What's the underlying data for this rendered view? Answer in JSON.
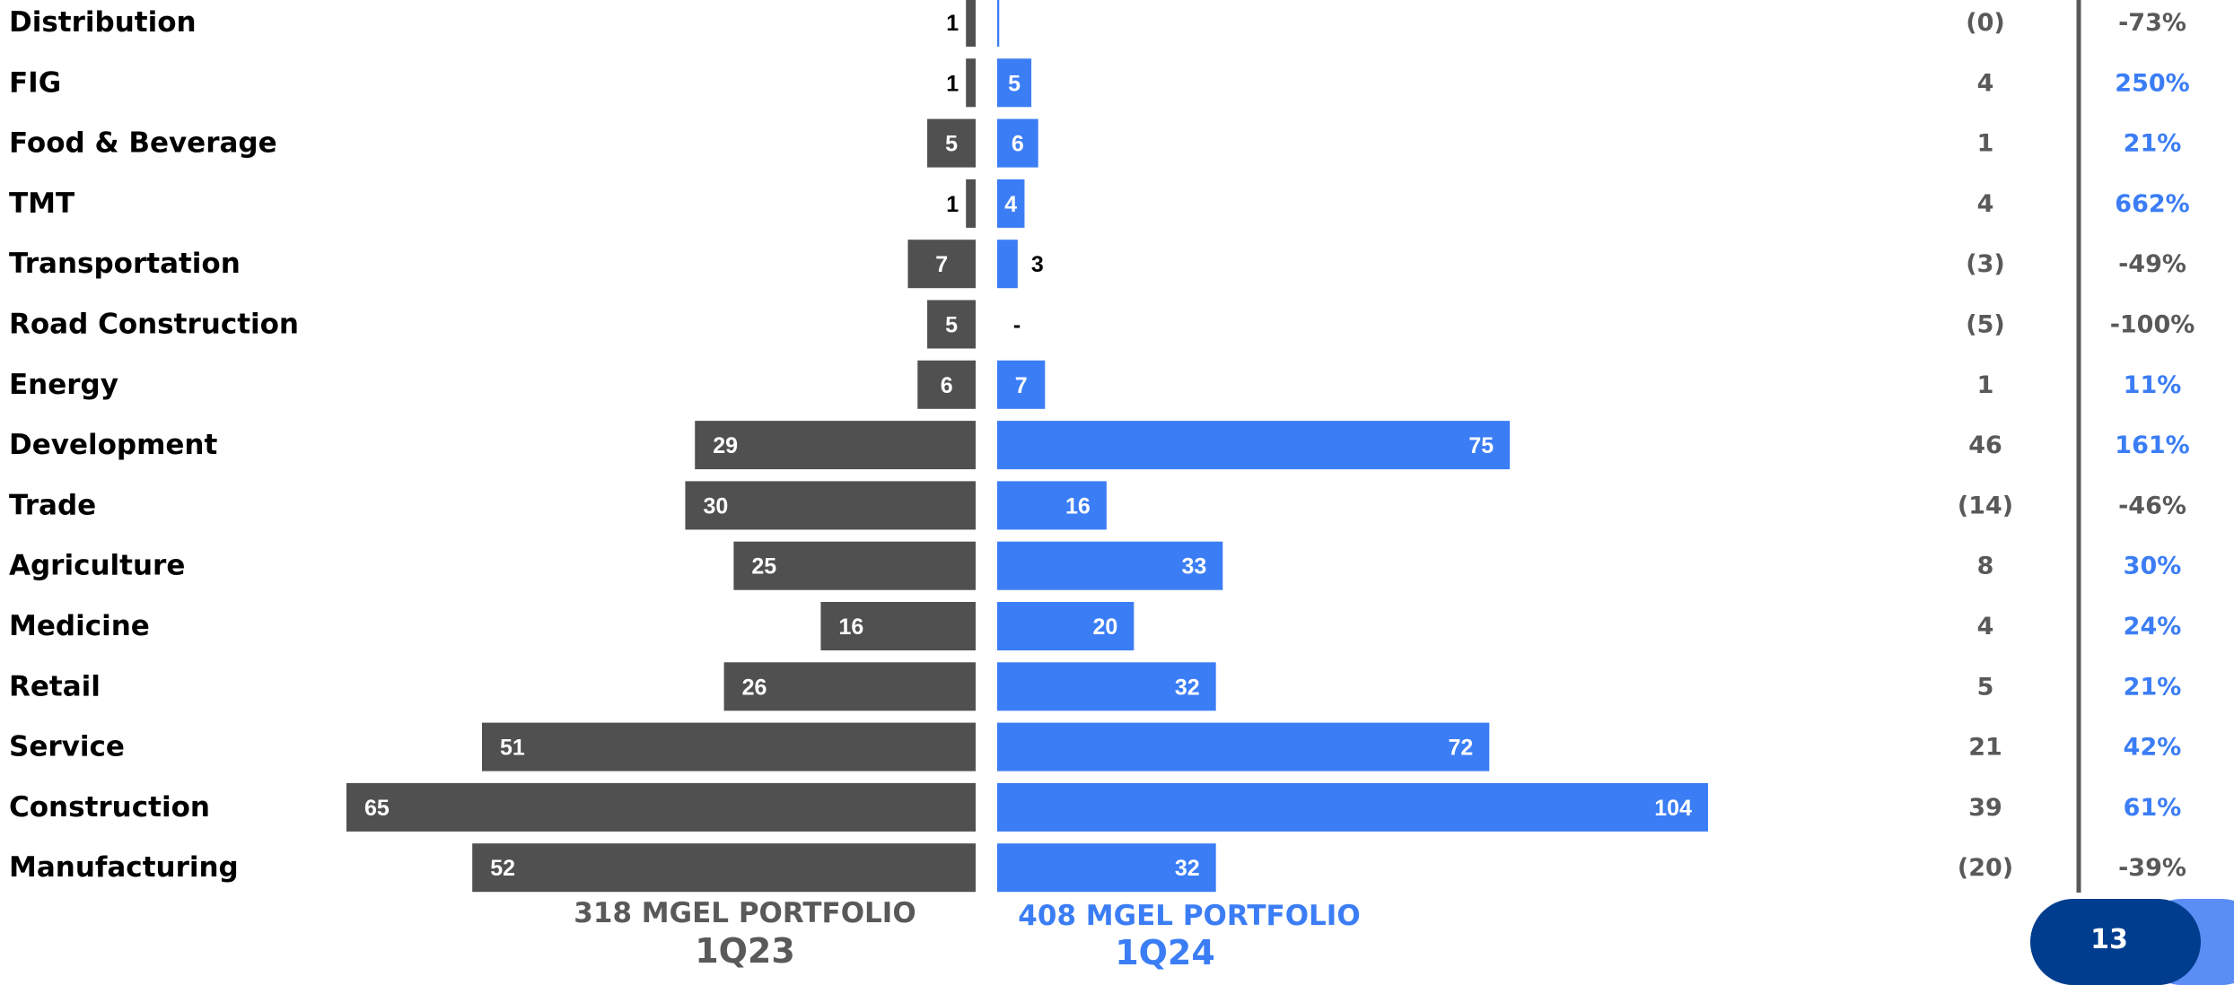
{
  "chart_data": {
    "type": "bar",
    "categories": [
      "Distribution",
      "FIG",
      "Food & Beverage",
      "TMT",
      "Transportation",
      "Road Construction",
      "Energy",
      "Development",
      "Trade",
      "Agriculture",
      "Medicine",
      "Retail",
      "Service",
      "Construction",
      "Manufacturing"
    ],
    "series": [
      {
        "name": "1Q23",
        "values": [
          1,
          1,
          5,
          1,
          7,
          5,
          6,
          29,
          30,
          25,
          16,
          26,
          51,
          65,
          52
        ],
        "labels": [
          "1",
          "1",
          "5",
          "1",
          "7",
          "5",
          "6",
          "29",
          "30",
          "25",
          "16",
          "26",
          "51",
          "65",
          "52"
        ],
        "color": "#505050"
      },
      {
        "name": "1Q24",
        "values": [
          0.3,
          5,
          6,
          4,
          3,
          0,
          7,
          75,
          16,
          33,
          20,
          32,
          72,
          104,
          32
        ],
        "labels": [
          "",
          "5",
          "6",
          "4",
          "3",
          "-",
          "7",
          "75",
          "16",
          "33",
          "20",
          "32",
          "72",
          "104",
          "32"
        ],
        "color": "#3b7df5"
      }
    ],
    "change": [
      "(0)",
      "4",
      "1",
      "4",
      "(3)",
      "(5)",
      "1",
      "46",
      "(14)",
      "8",
      "4",
      "5",
      "21",
      "39",
      "(20)"
    ],
    "change_pct": [
      "-73%",
      "250%",
      "21%",
      "662%",
      "-49%",
      "-100%",
      "11%",
      "161%",
      "-46%",
      "30%",
      "24%",
      "21%",
      "42%",
      "61%",
      "-39%"
    ],
    "pct_positive": [
      false,
      true,
      true,
      true,
      false,
      false,
      true,
      true,
      false,
      true,
      true,
      true,
      true,
      true,
      false
    ]
  },
  "footer": {
    "left_line1": "318 MGEL PORTFOLIO",
    "left_line2": "1Q23",
    "right_line1": "408 MGEL PORTFOLIO",
    "right_line2": "1Q24"
  },
  "page_number": "13",
  "colors": {
    "dark_bar": "#505050",
    "blue_bar": "#3b7df5",
    "neutral_text": "#595959",
    "badge": "#003d8f"
  }
}
